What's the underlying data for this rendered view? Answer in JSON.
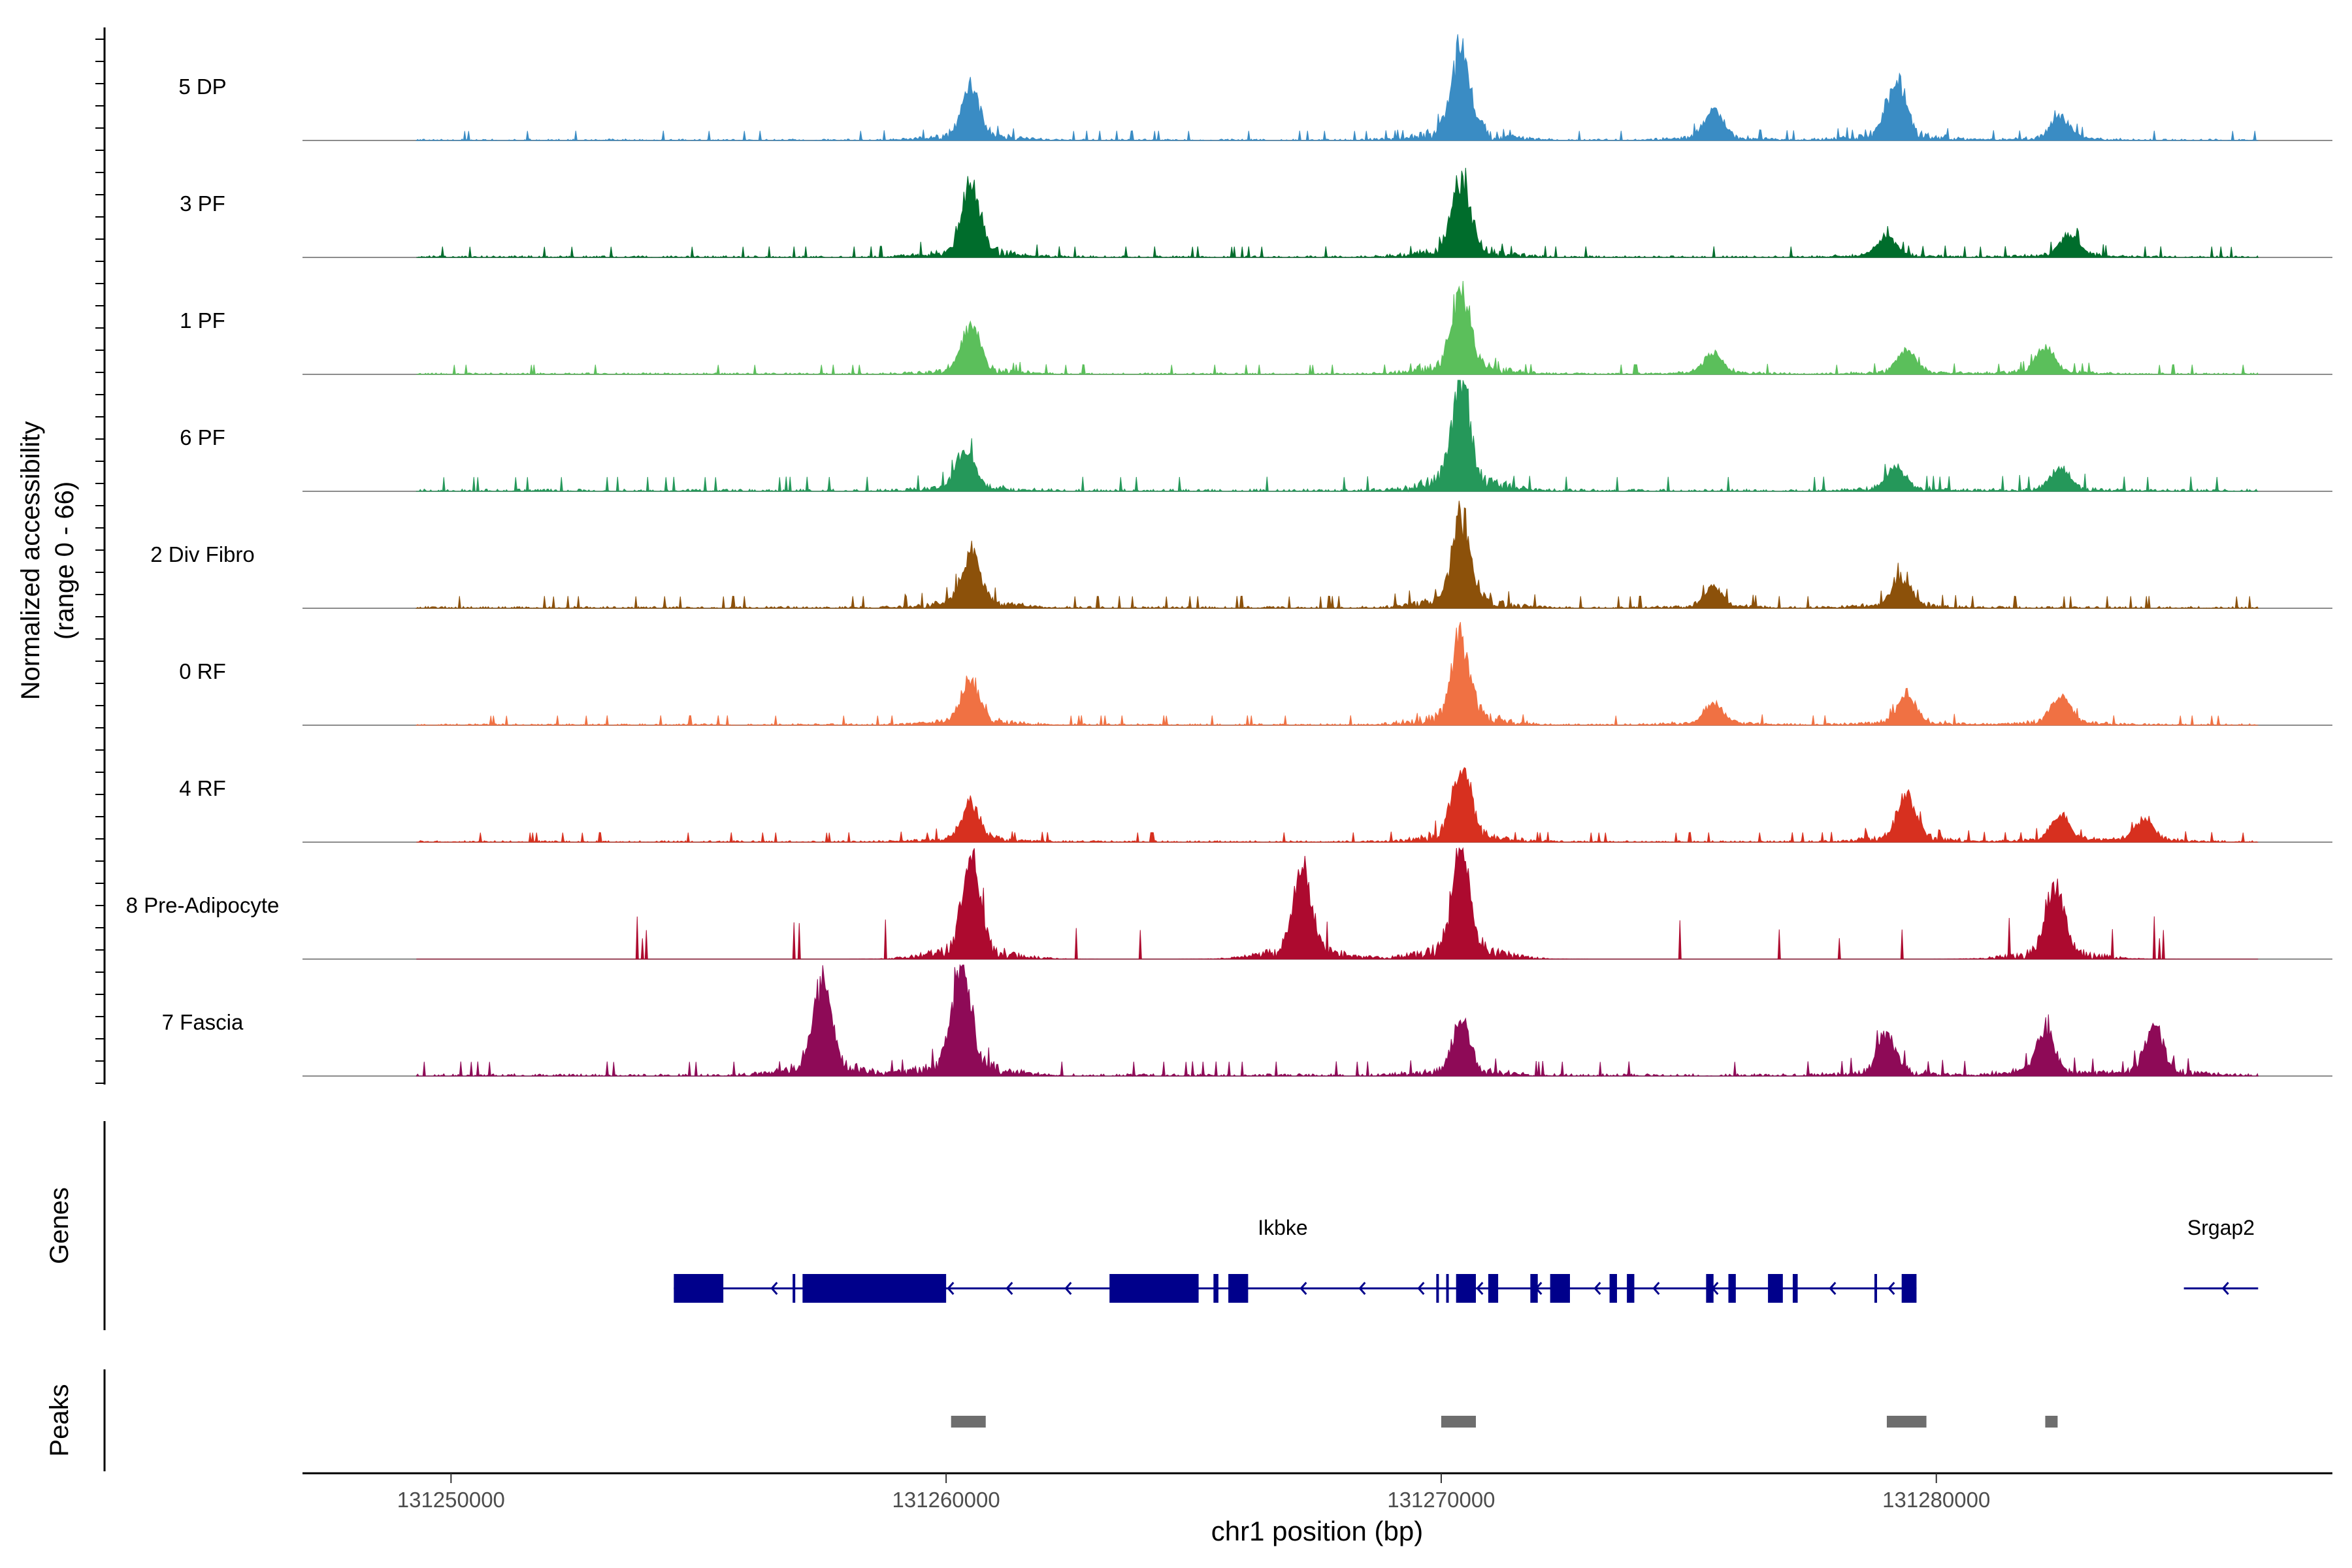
{
  "chart_data": {
    "type": "area",
    "title": "",
    "xlabel": "chr1 position (bp)",
    "ylabel_line1": "Normalized accessibility",
    "ylabel_line2": "(range 0 - 66)",
    "y_range": [
      0,
      66
    ],
    "x_range": [
      131247000,
      131288000
    ],
    "x_ticks": [
      131250000,
      131260000,
      131270000,
      131280000
    ],
    "x_tick_labels": [
      "131250000",
      "131260000",
      "131270000",
      "131280000"
    ],
    "track_start": 131249300,
    "track_end": 131286500,
    "tracks": [
      {
        "name": "5 DP",
        "color": "#3a8cc4",
        "noise": 0.08,
        "peaks": [
          [
            131260500,
            30
          ],
          [
            131270400,
            54
          ],
          [
            131275500,
            18
          ],
          [
            131279200,
            36
          ],
          [
            131282500,
            14
          ]
        ]
      },
      {
        "name": "3 PF",
        "color": "#006d2c",
        "noise": 0.09,
        "peaks": [
          [
            131260500,
            40
          ],
          [
            131270400,
            46
          ],
          [
            131279000,
            12
          ],
          [
            131282700,
            14
          ]
        ]
      },
      {
        "name": "1 PF",
        "color": "#5bbf5b",
        "noise": 0.08,
        "peaks": [
          [
            131260500,
            28
          ],
          [
            131270400,
            50
          ],
          [
            131275500,
            12
          ],
          [
            131279400,
            14
          ],
          [
            131282200,
            16
          ]
        ]
      },
      {
        "name": "6 PF",
        "color": "#25985a",
        "noise": 0.12,
        "peaks": [
          [
            131260400,
            24
          ],
          [
            131270400,
            64
          ],
          [
            131279200,
            14
          ],
          [
            131282500,
            14
          ]
        ]
      },
      {
        "name": "2 Div Fibro",
        "color": "#8c510a",
        "noise": 0.1,
        "peaks": [
          [
            131260500,
            32
          ],
          [
            131270400,
            54
          ],
          [
            131275500,
            12
          ],
          [
            131279300,
            18
          ]
        ]
      },
      {
        "name": "0 RF",
        "color": "#f07143",
        "noise": 0.08,
        "peaks": [
          [
            131260500,
            26
          ],
          [
            131270400,
            52
          ],
          [
            131275500,
            14
          ],
          [
            131279400,
            18
          ],
          [
            131282500,
            18
          ]
        ]
      },
      {
        "name": "4 RF",
        "color": "#d7301f",
        "noise": 0.08,
        "peaks": [
          [
            131260500,
            22
          ],
          [
            131270400,
            46
          ],
          [
            131279400,
            28
          ],
          [
            131282500,
            16
          ],
          [
            131284200,
            14
          ]
        ]
      },
      {
        "name": "8 Pre-Adipocyte",
        "color": "#ad0a2f",
        "noise": 0.0,
        "peaks": [
          [
            131260500,
            56
          ],
          [
            131267200,
            52
          ],
          [
            131270400,
            62
          ],
          [
            131282400,
            44
          ]
        ]
      },
      {
        "name": "7 Fascia",
        "color": "#8e0a57",
        "noise": 0.12,
        "peaks": [
          [
            131257500,
            56
          ],
          [
            131260300,
            66
          ],
          [
            131270400,
            30
          ],
          [
            131279000,
            24
          ],
          [
            131282200,
            26
          ],
          [
            131284400,
            30
          ]
        ]
      }
    ],
    "genes_label": "Genes",
    "genes": [
      {
        "name": "Ikbke",
        "strand": "-",
        "start": 131254500,
        "end": 131279600,
        "exons": [
          [
            131254500,
            131255500
          ],
          [
            131256900,
            131256950
          ],
          [
            131257100,
            131260000
          ],
          [
            131263300,
            131265100
          ],
          [
            131265400,
            131265500
          ],
          [
            131265700,
            131266100
          ],
          [
            131269900,
            131269950
          ],
          [
            131270100,
            131270150
          ],
          [
            131270300,
            131270700
          ],
          [
            131270950,
            131271150
          ],
          [
            131271800,
            131271950
          ],
          [
            131272200,
            131272600
          ],
          [
            131273400,
            131273550
          ],
          [
            131273750,
            131273900
          ],
          [
            131275350,
            131275500
          ],
          [
            131275800,
            131275950
          ],
          [
            131276600,
            131276900
          ],
          [
            131277100,
            131277200
          ],
          [
            131278750,
            131278800
          ],
          [
            131279300,
            131279600
          ]
        ]
      },
      {
        "name": "Srgap2",
        "strand": "-",
        "start": 131285000,
        "end": 131286500,
        "exons": []
      }
    ],
    "peaks_label": "Peaks",
    "peak_regions": [
      [
        131260100,
        131260800
      ],
      [
        131270000,
        131270700
      ],
      [
        131279000,
        131279800
      ],
      [
        131282200,
        131282450
      ]
    ]
  }
}
